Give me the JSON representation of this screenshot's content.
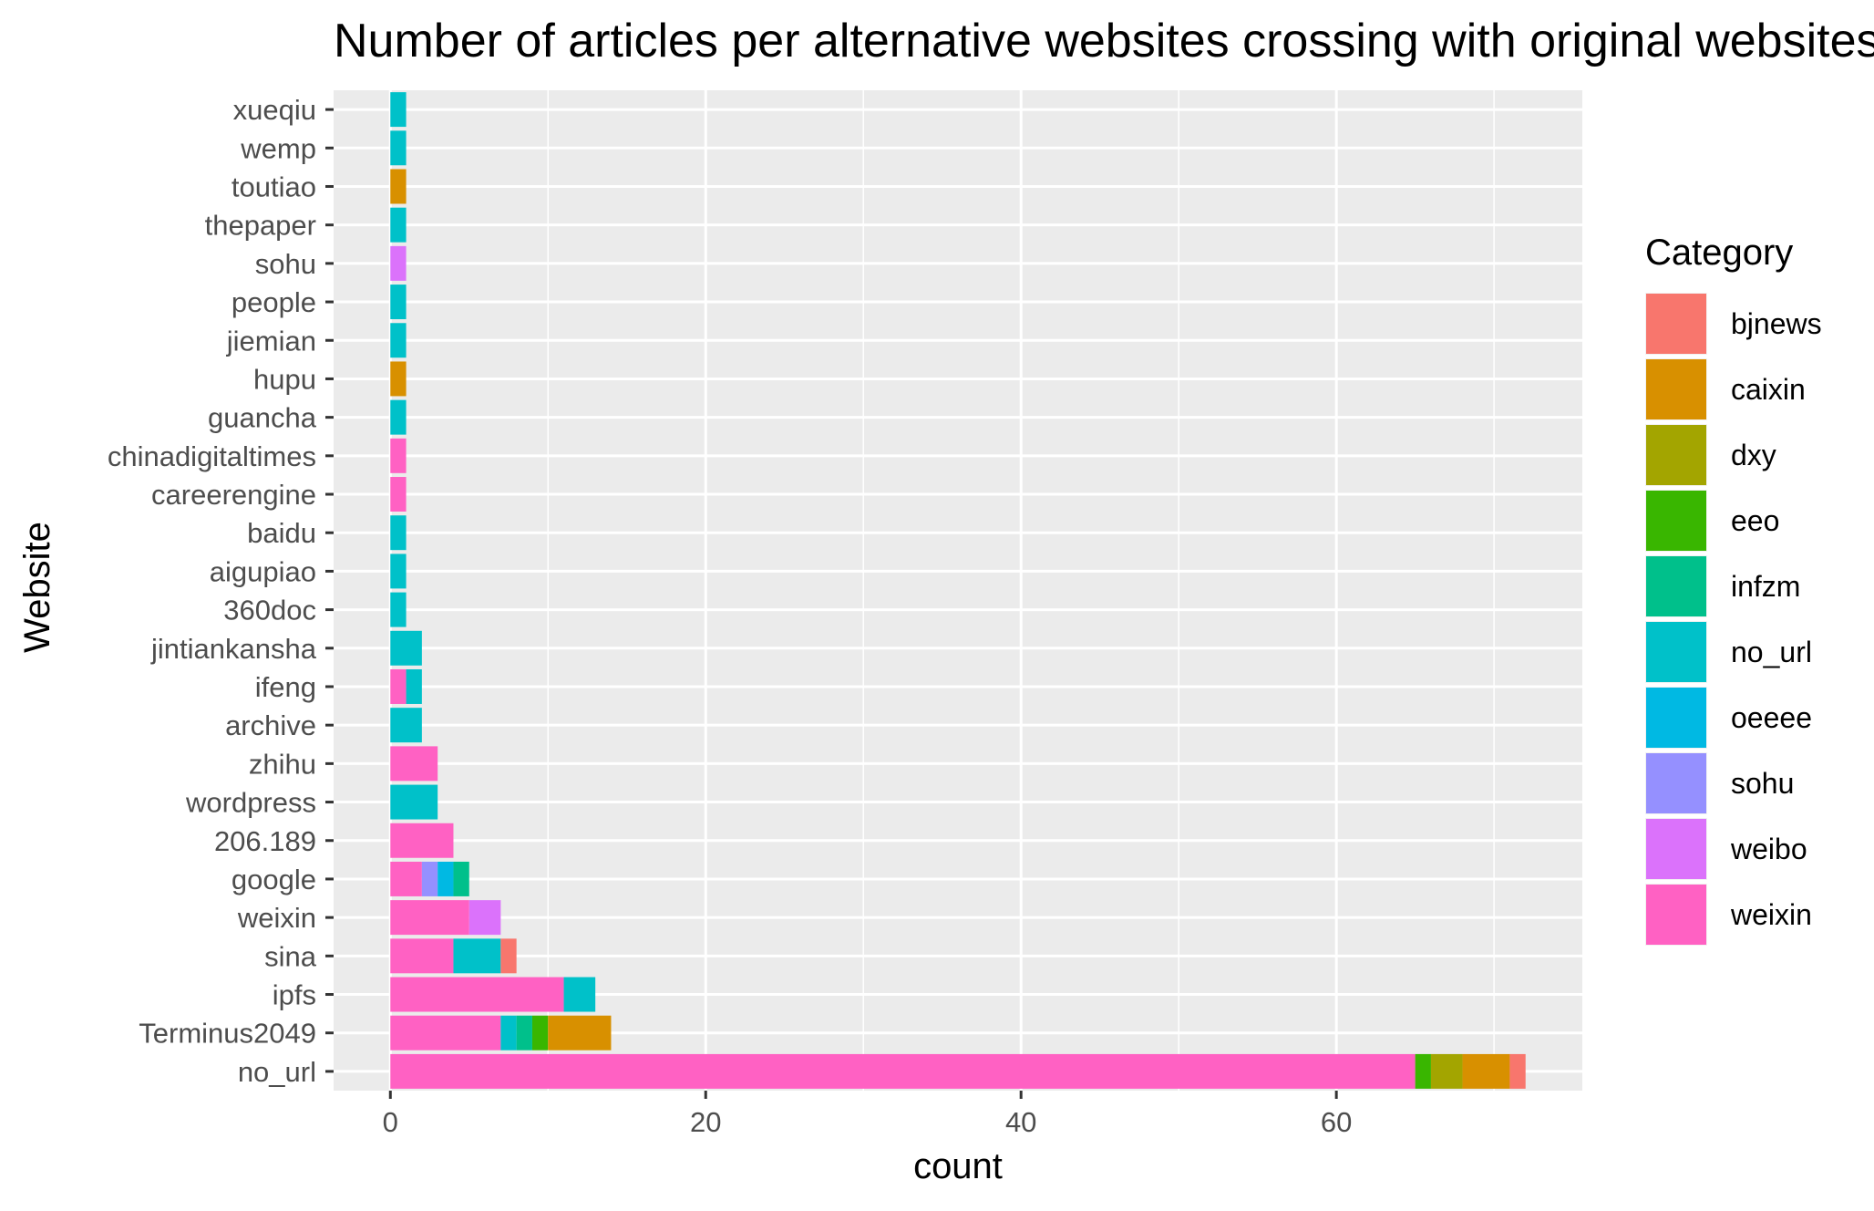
{
  "chart_data": {
    "type": "bar",
    "orientation": "horizontal",
    "stacked": true,
    "title": "Number of articles per alternative websites crossing with original websites",
    "xlabel": "count",
    "ylabel": "Website",
    "xlim": [
      -3.6,
      75.6
    ],
    "xticks": [
      0,
      20,
      40,
      60
    ],
    "grid": true,
    "legend": {
      "title": "Category",
      "placement": "right"
    },
    "categories": [
      "no_url",
      "Terminus2049",
      "ipfs",
      "sina",
      "weixin",
      "google",
      "206.189",
      "wordpress",
      "zhihu",
      "archive",
      "ifeng",
      "jintiankansha",
      "360doc",
      "aigupiao",
      "baidu",
      "careerengine",
      "chinadigitaltimes",
      "guancha",
      "hupu",
      "jiemian",
      "people",
      "sohu",
      "thepaper",
      "toutiao",
      "wemp",
      "xueqiu"
    ],
    "series": [
      {
        "name": "weixin",
        "color": "#FF61C3",
        "values": [
          65,
          7,
          11,
          4,
          5,
          2,
          4,
          0,
          3,
          0,
          1,
          0,
          0,
          0,
          0,
          1,
          1,
          0,
          0,
          0,
          0,
          0,
          0,
          0,
          0,
          0
        ]
      },
      {
        "name": "weibo",
        "color": "#DB72FB",
        "values": [
          0,
          0,
          0,
          0,
          2,
          0,
          0,
          0,
          0,
          0,
          0,
          0,
          0,
          0,
          0,
          0,
          0,
          0,
          0,
          0,
          0,
          1,
          0,
          0,
          0,
          0
        ]
      },
      {
        "name": "sohu",
        "color": "#9590FF",
        "values": [
          0,
          0,
          0,
          0,
          0,
          1,
          0,
          0,
          0,
          0,
          0,
          0,
          0,
          0,
          0,
          0,
          0,
          0,
          0,
          0,
          0,
          0,
          0,
          0,
          0,
          0
        ]
      },
      {
        "name": "oeeee",
        "color": "#00B9E3",
        "values": [
          0,
          0,
          0,
          0,
          0,
          1,
          0,
          0,
          0,
          0,
          0,
          0,
          0,
          0,
          0,
          0,
          0,
          0,
          0,
          0,
          0,
          0,
          0,
          0,
          0,
          0
        ]
      },
      {
        "name": "no_url",
        "color": "#00C1C9",
        "values": [
          0,
          1,
          2,
          3,
          0,
          0,
          0,
          3,
          0,
          2,
          1,
          2,
          1,
          1,
          1,
          0,
          0,
          1,
          0,
          1,
          1,
          0,
          1,
          0,
          1,
          1
        ]
      },
      {
        "name": "infzm",
        "color": "#00C08B",
        "values": [
          0,
          1,
          0,
          0,
          0,
          1,
          0,
          0,
          0,
          0,
          0,
          0,
          0,
          0,
          0,
          0,
          0,
          0,
          0,
          0,
          0,
          0,
          0,
          0,
          0,
          0
        ]
      },
      {
        "name": "eeo",
        "color": "#39B600",
        "values": [
          1,
          1,
          0,
          0,
          0,
          0,
          0,
          0,
          0,
          0,
          0,
          0,
          0,
          0,
          0,
          0,
          0,
          0,
          0,
          0,
          0,
          0,
          0,
          0,
          0,
          0
        ]
      },
      {
        "name": "dxy",
        "color": "#A3A500",
        "values": [
          2,
          0,
          0,
          0,
          0,
          0,
          0,
          0,
          0,
          0,
          0,
          0,
          0,
          0,
          0,
          0,
          0,
          0,
          0,
          0,
          0,
          0,
          0,
          0,
          0,
          0
        ]
      },
      {
        "name": "caixin",
        "color": "#D89000",
        "values": [
          3,
          4,
          0,
          0,
          0,
          0,
          0,
          0,
          0,
          0,
          0,
          0,
          0,
          0,
          0,
          0,
          0,
          0,
          1,
          0,
          0,
          0,
          0,
          1,
          0,
          0
        ]
      },
      {
        "name": "bjnews",
        "color": "#F8766D",
        "values": [
          1,
          0,
          0,
          1,
          0,
          0,
          0,
          0,
          0,
          0,
          0,
          0,
          0,
          0,
          0,
          0,
          0,
          0,
          0,
          0,
          0,
          0,
          0,
          0,
          0,
          0
        ]
      }
    ],
    "legend_order": [
      "bjnews",
      "caixin",
      "dxy",
      "eeo",
      "infzm",
      "no_url",
      "oeeee",
      "sohu",
      "weibo",
      "weixin"
    ]
  }
}
